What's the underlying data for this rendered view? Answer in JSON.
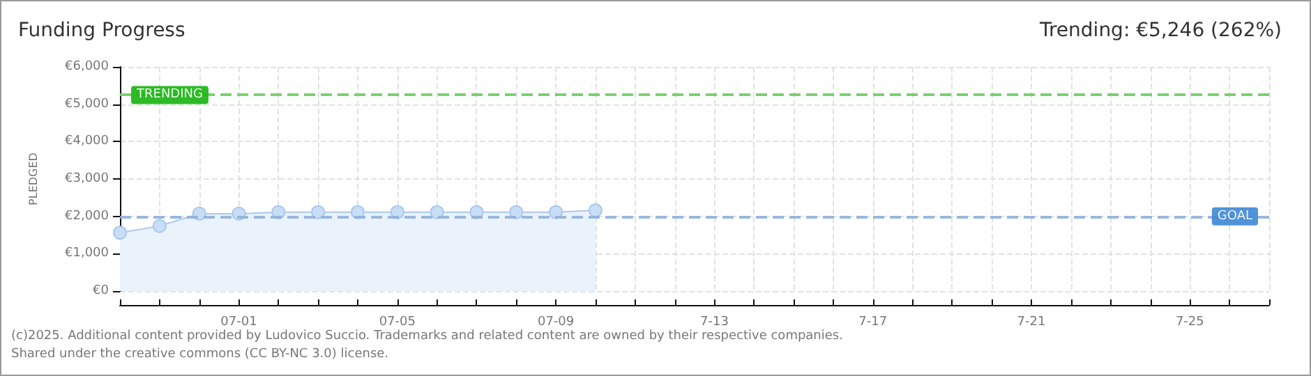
{
  "chart_data": {
    "type": "area",
    "title": "Funding Progress",
    "subtitle": "Trending: €5,246 (262%)",
    "ylabel": "PLEDGED",
    "x": [
      "--06-28",
      "--06-29",
      "--06-30",
      "--07-01",
      "--07-02",
      "--07-03",
      "--07-04",
      "--07-05",
      "--07-06",
      "--07-07",
      "--07-08",
      "--07-09",
      "--07-10"
    ],
    "series": [
      {
        "color": "#a9c8ee",
        "values": [
          1560,
          1740,
          2070,
          2070,
          2110,
          2110,
          2110,
          2110,
          2110,
          2110,
          2110,
          2110,
          2160
        ]
      }
    ],
    "xlim": [
      "--06-28",
      "--07-27"
    ],
    "xticks": [
      {
        "value": "--06-28",
        "label": null
      },
      {
        "value": "--06-29",
        "label": null
      },
      {
        "value": "--06-30",
        "label": null
      },
      {
        "value": "--07-01",
        "label": "07-01"
      },
      {
        "value": "--07-02",
        "label": null
      },
      {
        "value": "--07-03",
        "label": null
      },
      {
        "value": "--07-04",
        "label": null
      },
      {
        "value": "--07-05",
        "label": "07-05"
      },
      {
        "value": "--07-06",
        "label": null
      },
      {
        "value": "--07-07",
        "label": null
      },
      {
        "value": "--07-08",
        "label": null
      },
      {
        "value": "--07-09",
        "label": "07-09"
      },
      {
        "value": "--07-10",
        "label": null
      },
      {
        "value": "--07-11",
        "label": null
      },
      {
        "value": "--07-12",
        "label": null
      },
      {
        "value": "--07-13",
        "label": "7-13"
      },
      {
        "value": "--07-14",
        "label": null
      },
      {
        "value": "--07-15",
        "label": null
      },
      {
        "value": "--07-16",
        "label": null
      },
      {
        "value": "--07-17",
        "label": "7-17"
      },
      {
        "value": "--07-18",
        "label": null
      },
      {
        "value": "--07-19",
        "label": null
      },
      {
        "value": "--07-20",
        "label": null
      },
      {
        "value": "--07-21",
        "label": "7-21"
      },
      {
        "value": "--07-22",
        "label": null
      },
      {
        "value": "--07-23",
        "label": null
      },
      {
        "value": "--07-24",
        "label": null
      },
      {
        "value": "--07-25",
        "label": "7-25"
      },
      {
        "value": "--07-26",
        "label": null
      },
      {
        "value": "--07-27",
        "label": null
      }
    ],
    "ylim": [
      0,
      6000
    ],
    "yticks": [
      {
        "value": 0,
        "label": "€0"
      },
      {
        "value": 1000,
        "label": "€1,000"
      },
      {
        "value": 2000,
        "label": "€2,000"
      },
      {
        "value": 3000,
        "label": "€3,000"
      },
      {
        "value": 4000,
        "label": "€4,000"
      },
      {
        "value": 5000,
        "label": "€5,000"
      },
      {
        "value": 6000,
        "label": "€6,000"
      }
    ],
    "ref_lines": [
      {
        "axis": "y",
        "value": 5246,
        "label": "TRENDING",
        "color": "#6ccc5e",
        "line_style": "dashed"
      },
      {
        "axis": "y",
        "value": 2000,
        "label": "GOAL",
        "color": "#8fb0dc",
        "line_style": "dashed"
      }
    ],
    "grid": true,
    "marker": "circle",
    "line_style": "solid",
    "annotations": [
      "(c)2025. Additional content provided by Ludovico Succio. Trademarks and related content are owned by their respective companies.",
      "Shared under the creative commons (CC BY-NC 3.0) license."
    ]
  }
}
